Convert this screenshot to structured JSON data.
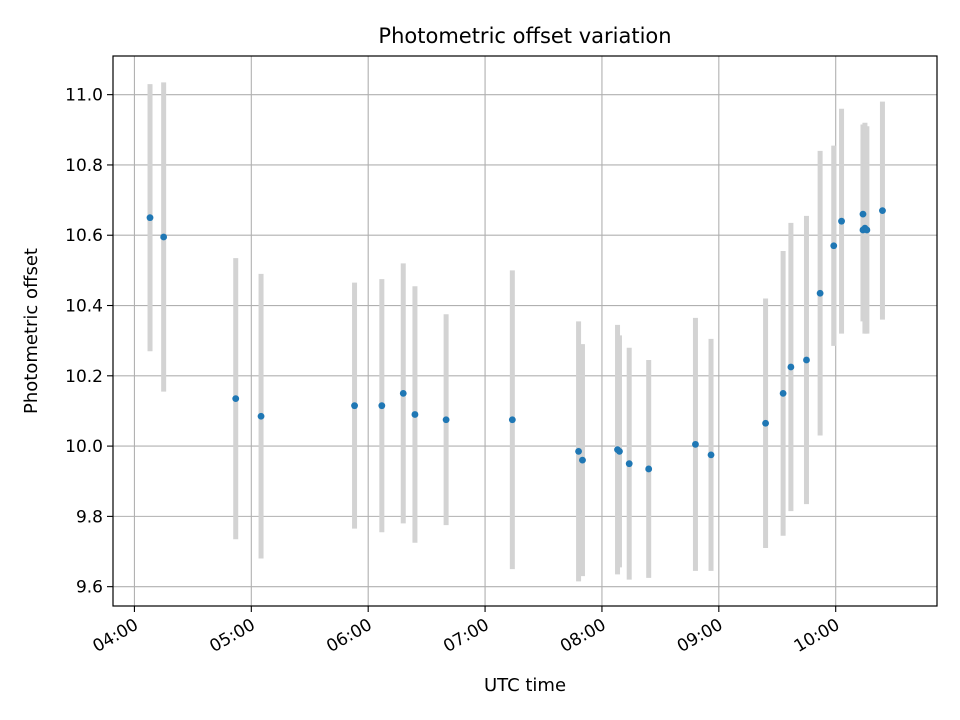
{
  "chart_data": {
    "type": "scatter",
    "title": "Photometric offset variation",
    "xlabel": "UTC time",
    "ylabel": "Photometric offset",
    "x_ticks": [
      "04:00",
      "05:00",
      "06:00",
      "07:00",
      "08:00",
      "09:00",
      "10:00"
    ],
    "y_ticks": [
      "9.6",
      "9.8",
      "10.0",
      "10.2",
      "10.4",
      "10.6",
      "10.8",
      "11.0"
    ],
    "xlim": [
      "03:49",
      "10:52"
    ],
    "ylim": [
      9.545,
      11.11
    ],
    "grid": true,
    "colors": {
      "marker": "#1f77b4",
      "errorbar": "#d3d3d3",
      "grid": "#b0b0b0"
    },
    "points": [
      {
        "t": "04:08",
        "y": 10.65,
        "err": 0.38
      },
      {
        "t": "04:15",
        "y": 10.595,
        "err": 0.44
      },
      {
        "t": "04:52",
        "y": 10.135,
        "err": 0.4
      },
      {
        "t": "05:05",
        "y": 10.085,
        "err": 0.405
      },
      {
        "t": "05:53",
        "y": 10.115,
        "err": 0.35
      },
      {
        "t": "06:07",
        "y": 10.115,
        "err": 0.36
      },
      {
        "t": "06:18",
        "y": 10.15,
        "err": 0.37
      },
      {
        "t": "06:24",
        "y": 10.09,
        "err": 0.365
      },
      {
        "t": "06:40",
        "y": 10.075,
        "err": 0.3
      },
      {
        "t": "07:14",
        "y": 10.075,
        "err": 0.425
      },
      {
        "t": "07:48",
        "y": 9.985,
        "err": 0.37
      },
      {
        "t": "07:50",
        "y": 9.96,
        "err": 0.33
      },
      {
        "t": "08:08",
        "y": 9.99,
        "err": 0.355
      },
      {
        "t": "08:09",
        "y": 9.985,
        "err": 0.33
      },
      {
        "t": "08:14",
        "y": 9.95,
        "err": 0.33
      },
      {
        "t": "08:24",
        "y": 9.935,
        "err": 0.31
      },
      {
        "t": "08:48",
        "y": 10.005,
        "err": 0.36
      },
      {
        "t": "08:56",
        "y": 9.975,
        "err": 0.33
      },
      {
        "t": "09:24",
        "y": 10.065,
        "err": 0.355
      },
      {
        "t": "09:33",
        "y": 10.15,
        "err": 0.405
      },
      {
        "t": "09:37",
        "y": 10.225,
        "err": 0.41
      },
      {
        "t": "09:45",
        "y": 10.245,
        "err": 0.41
      },
      {
        "t": "09:52",
        "y": 10.435,
        "err": 0.405
      },
      {
        "t": "09:59",
        "y": 10.57,
        "err": 0.285
      },
      {
        "t": "10:03",
        "y": 10.64,
        "err": 0.32
      },
      {
        "t": "10:14",
        "y": 10.66,
        "err": 0.255
      },
      {
        "t": "10:14",
        "y": 10.615,
        "err": 0.26
      },
      {
        "t": "10:15",
        "y": 10.62,
        "err": 0.3
      },
      {
        "t": "10:16",
        "y": 10.615,
        "err": 0.295
      },
      {
        "t": "10:24",
        "y": 10.67,
        "err": 0.31
      }
    ]
  }
}
